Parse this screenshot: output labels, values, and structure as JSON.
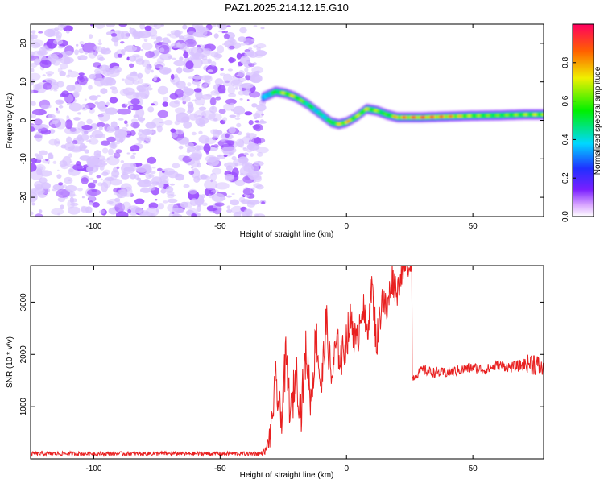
{
  "title": "PAZ1.2025.214.12.15.G10",
  "colors": {
    "trace": "#e82020",
    "noise": "#9b4dff",
    "noise_light": "#d9c4ff"
  },
  "chart_data": [
    {
      "type": "heatmap",
      "xlabel": "Height of straight line (km)",
      "ylabel": "Frequency (Hz)",
      "xlim": [
        -125,
        78
      ],
      "ylim": [
        -25,
        25
      ],
      "xticks": [
        -100,
        -50,
        0,
        50
      ],
      "yticks": [
        -20,
        -10,
        0,
        10,
        20
      ],
      "colorbar": {
        "label": "Normalized spectral amplitude",
        "range": [
          0,
          1
        ],
        "ticks": [
          "0.0",
          "0.2",
          "0.4",
          "0.6",
          "0.8"
        ],
        "colormap": "rainbow (magenta-blue-cyan-green-yellow-red)"
      },
      "noise_region_x": [
        -125,
        -33
      ],
      "ridge": {
        "x": [
          -33,
          -28,
          -24,
          -20,
          -15,
          -10,
          -6,
          -3,
          0,
          4,
          8,
          12,
          16,
          20,
          30,
          40,
          50,
          60,
          70,
          78
        ],
        "freq": [
          6,
          7.5,
          7,
          6,
          4,
          1.5,
          -0.5,
          -1,
          -0.5,
          1,
          3,
          2.5,
          1.5,
          0.8,
          0.8,
          1,
          1.2,
          1.3,
          1.5,
          1.5
        ],
        "amplitude": [
          0.35,
          0.6,
          0.75,
          0.75,
          0.55,
          0.45,
          0.6,
          0.75,
          0.85,
          0.7,
          0.75,
          0.7,
          0.6,
          0.85,
          0.95,
          0.9,
          0.7,
          0.65,
          0.7,
          0.75
        ]
      }
    },
    {
      "type": "line",
      "xlabel": "Height of straight line (km)",
      "ylabel": "SNR (10 * v/v)",
      "xlim": [
        -125,
        78
      ],
      "ylim": [
        0,
        3700
      ],
      "xticks": [
        -100,
        -50,
        0,
        50
      ],
      "yticks": [
        1000,
        2000,
        3000
      ],
      "series": [
        {
          "x": [
            -125,
            -34,
            -32,
            -30,
            -28,
            -26,
            -24,
            -22,
            -20,
            -18,
            -16,
            -14,
            -12,
            -10,
            -8,
            -6,
            -4,
            -2,
            0,
            2,
            4,
            6,
            8,
            10,
            12,
            14,
            16,
            18,
            20,
            22,
            24,
            25.8,
            26.2,
            30,
            35,
            40,
            45,
            50,
            55,
            60,
            65,
            70,
            74,
            78
          ],
          "y": [
            100,
            100,
            150,
            500,
            1500,
            700,
            1900,
            800,
            1700,
            900,
            2100,
            1100,
            2400,
            1300,
            2600,
            1500,
            2200,
            1900,
            2300,
            2700,
            2100,
            3000,
            2400,
            3300,
            2200,
            3100,
            2800,
            3500,
            3200,
            3600,
            3650,
            3750,
            1550,
            1700,
            1650,
            1650,
            1700,
            1750,
            1700,
            1800,
            1750,
            1800,
            1850,
            1700
          ],
          "noise_amplitude": [
            40,
            40,
            60,
            300,
            400,
            450,
            450,
            450,
            450,
            450,
            450,
            450,
            450,
            450,
            450,
            400,
            400,
            400,
            400,
            400,
            400,
            400,
            400,
            400,
            400,
            400,
            350,
            350,
            300,
            250,
            200,
            150,
            80,
            100,
            100,
            100,
            100,
            100,
            100,
            100,
            100,
            120,
            250,
            150
          ]
        }
      ]
    }
  ]
}
